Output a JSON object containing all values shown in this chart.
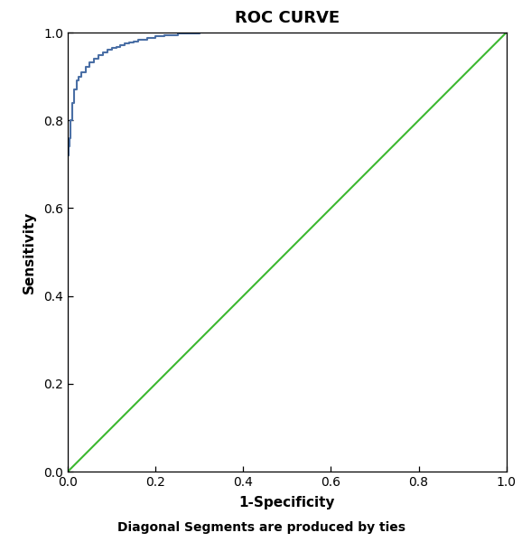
{
  "title": "ROC CURVE",
  "xlabel": "1-Specificity",
  "ylabel": "Sensitivity",
  "footnote": "Diagonal Segments are produced by ties",
  "xlim": [
    0.0,
    1.0
  ],
  "ylim": [
    0.0,
    1.0
  ],
  "xticks": [
    0.0,
    0.2,
    0.4,
    0.6,
    0.8,
    1.0
  ],
  "yticks": [
    0.0,
    0.2,
    0.4,
    0.6,
    0.8,
    1.0
  ],
  "roc_color": "#4a6fa5",
  "diag_color": "#3cb830",
  "roc_linewidth": 1.5,
  "diag_linewidth": 1.5,
  "background_color": "#ffffff",
  "roc_x": [
    0.0,
    0.0,
    0.0,
    0.002,
    0.002,
    0.004,
    0.004,
    0.006,
    0.006,
    0.01,
    0.01,
    0.015,
    0.015,
    0.02,
    0.02,
    0.025,
    0.025,
    0.03,
    0.03,
    0.04,
    0.04,
    0.05,
    0.05,
    0.06,
    0.06,
    0.07,
    0.07,
    0.08,
    0.08,
    0.09,
    0.09,
    0.1,
    0.1,
    0.11,
    0.11,
    0.12,
    0.12,
    0.13,
    0.13,
    0.14,
    0.14,
    0.15,
    0.15,
    0.16,
    0.16,
    0.18,
    0.18,
    0.2,
    0.2,
    0.22,
    0.22,
    0.25,
    0.25,
    0.3,
    0.3,
    0.333,
    0.333,
    1.0
  ],
  "roc_y": [
    0.0,
    0.0,
    0.72,
    0.72,
    0.74,
    0.74,
    0.76,
    0.76,
    0.8,
    0.8,
    0.84,
    0.84,
    0.87,
    0.87,
    0.89,
    0.89,
    0.9,
    0.9,
    0.91,
    0.91,
    0.922,
    0.922,
    0.932,
    0.932,
    0.94,
    0.94,
    0.948,
    0.948,
    0.954,
    0.954,
    0.96,
    0.96,
    0.964,
    0.964,
    0.968,
    0.968,
    0.972,
    0.972,
    0.975,
    0.975,
    0.978,
    0.978,
    0.98,
    0.98,
    0.984,
    0.984,
    0.988,
    0.988,
    0.991,
    0.991,
    0.994,
    0.994,
    0.997,
    0.997,
    1.0,
    1.0,
    1.0,
    1.0
  ]
}
